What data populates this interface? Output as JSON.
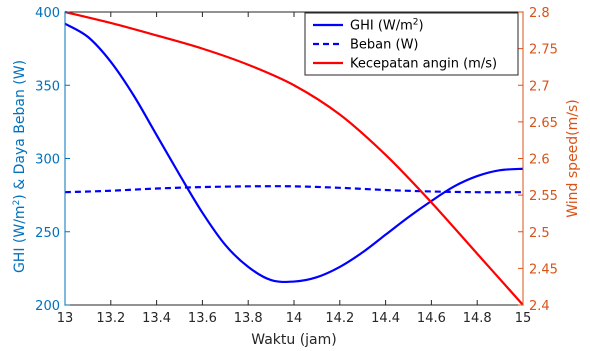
{
  "chart_data": {
    "type": "line",
    "xlabel": "Waktu (jam)",
    "ylabel_left_parts": [
      "GHI (W/m",
      "2",
      ") & Daya Beban (W)"
    ],
    "ylabel_right": "Wind speed(m/s)",
    "xlim": [
      13,
      15
    ],
    "ylim_left": [
      200,
      400
    ],
    "ylim_right": [
      2.4,
      2.8
    ],
    "x_ticks": [
      "13",
      "13.2",
      "13.4",
      "13.6",
      "13.8",
      "14",
      "14.2",
      "14.4",
      "14.6",
      "14.8",
      "15"
    ],
    "y_ticks_left": [
      "200",
      "250",
      "300",
      "350",
      "400"
    ],
    "y_ticks_right": [
      "2.4",
      "2.45",
      "2.5",
      "2.55",
      "2.6",
      "2.65",
      "2.7",
      "2.75",
      "2.8"
    ],
    "grid": false,
    "legend_position": "top-right",
    "series": [
      {
        "name": "GHI (W/m²)",
        "legend_parts": [
          "GHI (W/m",
          "2",
          ")"
        ],
        "axis": "left",
        "color": "#0000ff",
        "style": "solid",
        "x": [
          13,
          13.1,
          13.2,
          13.3,
          13.4,
          13.5,
          13.6,
          13.7,
          13.8,
          13.9,
          14,
          14.1,
          14.2,
          14.3,
          14.4,
          14.5,
          14.6,
          14.7,
          14.8,
          14.9,
          15
        ],
        "y": [
          392,
          383,
          366,
          343,
          316,
          289,
          263,
          241,
          226,
          217,
          216,
          219,
          226,
          236,
          248,
          260,
          271,
          281,
          288,
          292,
          293
        ]
      },
      {
        "name": "Beban (W)",
        "legend_parts": [
          "Beban (W)"
        ],
        "axis": "left",
        "color": "#0000ff",
        "style": "dashed",
        "x": [
          13,
          13.2,
          13.4,
          13.6,
          13.8,
          14,
          14.2,
          14.4,
          14.6,
          14.8,
          15
        ],
        "y": [
          277,
          278,
          279.5,
          280.5,
          281,
          281,
          280,
          278.5,
          277.5,
          277,
          277
        ]
      },
      {
        "name": "Kecepatan angin (m/s)",
        "legend_parts": [
          "Kecepatan angin (m/s)"
        ],
        "axis": "right",
        "color": "#ff0000",
        "style": "solid",
        "x": [
          13,
          13.2,
          13.4,
          13.6,
          13.8,
          14,
          14.2,
          14.4,
          14.6,
          14.8,
          15
        ],
        "y": [
          2.8,
          2.785,
          2.768,
          2.75,
          2.728,
          2.7,
          2.66,
          2.605,
          2.54,
          2.47,
          2.4
        ]
      }
    ]
  },
  "colors": {
    "left_axis": "#0072bd",
    "right_axis": "#d95319",
    "x_axis": "#262626"
  }
}
